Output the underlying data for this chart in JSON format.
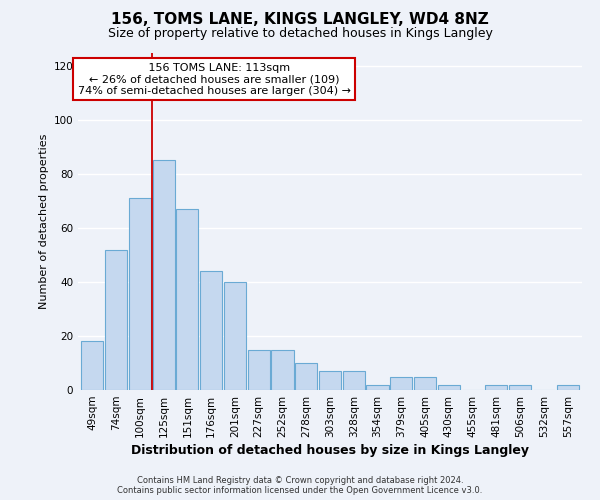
{
  "title": "156, TOMS LANE, KINGS LANGLEY, WD4 8NZ",
  "subtitle": "Size of property relative to detached houses in Kings Langley",
  "xlabel": "Distribution of detached houses by size in Kings Langley",
  "ylabel": "Number of detached properties",
  "footer_line1": "Contains HM Land Registry data © Crown copyright and database right 2024.",
  "footer_line2": "Contains public sector information licensed under the Open Government Licence v3.0.",
  "categories": [
    "49sqm",
    "74sqm",
    "100sqm",
    "125sqm",
    "151sqm",
    "176sqm",
    "201sqm",
    "227sqm",
    "252sqm",
    "278sqm",
    "303sqm",
    "328sqm",
    "354sqm",
    "379sqm",
    "405sqm",
    "430sqm",
    "455sqm",
    "481sqm",
    "506sqm",
    "532sqm",
    "557sqm"
  ],
  "values": [
    18,
    52,
    71,
    85,
    67,
    44,
    40,
    15,
    15,
    10,
    7,
    7,
    2,
    5,
    5,
    2,
    0,
    2,
    2,
    0,
    2
  ],
  "bar_color": "#c5d8ef",
  "bar_edge_color": "#6aaad4",
  "vline_x": 2.5,
  "vline_color": "#cc0000",
  "annotation_line1": "   156 TOMS LANE: 113sqm",
  "annotation_line2": "← 26% of detached houses are smaller (109)",
  "annotation_line3": "74% of semi-detached houses are larger (304) →",
  "annotation_box_color": "#ffffff",
  "annotation_box_edge": "#cc0000",
  "ylim": [
    0,
    125
  ],
  "yticks": [
    0,
    20,
    40,
    60,
    80,
    100,
    120
  ],
  "background_color": "#eef2f9",
  "plot_bg_color": "#eef2f9",
  "grid_color": "#ffffff",
  "title_fontsize": 11,
  "subtitle_fontsize": 9,
  "ylabel_fontsize": 8,
  "xlabel_fontsize": 9,
  "tick_fontsize": 7.5,
  "annotation_fontsize": 8,
  "footer_fontsize": 6
}
